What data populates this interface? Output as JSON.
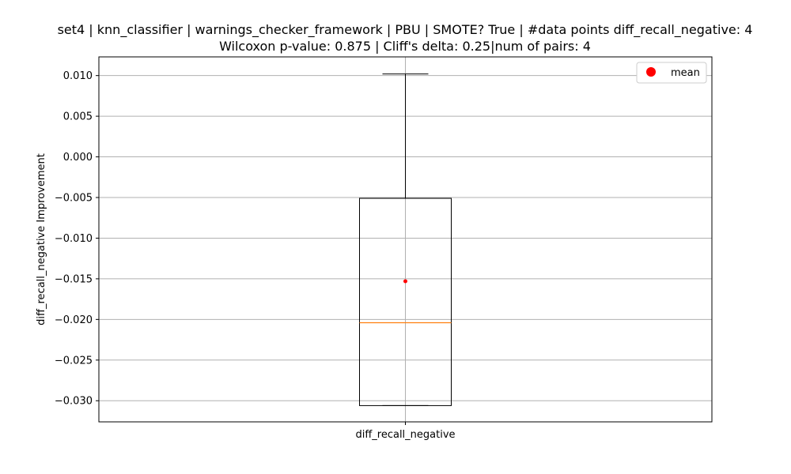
{
  "chart_data": {
    "type": "box",
    "title_lines": [
      "set4 | knn_classifier | warnings_checker_framework | PBU | SMOTE? True | #data points diff_recall_negative: 4",
      "Wilcoxon p-value: 0.875 | Cliff's delta: 0.25|num of pairs: 4"
    ],
    "ylabel": "diff_recall_negative Improvement",
    "xlabel": "",
    "categories": [
      "diff_recall_negative"
    ],
    "ylim": [
      -0.0326,
      0.0123
    ],
    "yticks": [
      -0.03,
      -0.025,
      -0.02,
      -0.015,
      -0.01,
      -0.005,
      0.0,
      0.005,
      0.01
    ],
    "ytick_labels": [
      "−0.030",
      "−0.025",
      "−0.020",
      "−0.015",
      "−0.010",
      "−0.005",
      "0.000",
      "0.005",
      "0.010"
    ],
    "grid": true,
    "boxes": [
      {
        "name": "diff_recall_negative",
        "whisker_low": -0.0306,
        "q1": -0.0306,
        "median": -0.0204,
        "q3": -0.0051,
        "whisker_high": 0.0102,
        "mean": -0.0153
      }
    ],
    "legend": {
      "position": "top-right",
      "entries": [
        {
          "label": "mean",
          "color": "#ff0000",
          "marker": "circle"
        }
      ]
    },
    "colors": {
      "box": "#000000",
      "median": "#ff7f0e",
      "mean": "#ff0000",
      "grid": "#b0b0b0"
    }
  }
}
